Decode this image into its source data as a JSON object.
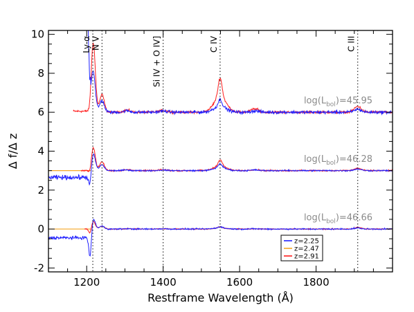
{
  "chart_data": {
    "type": "line",
    "title": "",
    "xlabel": "Restframe Wavelength (Å)",
    "ylabel": "Δ f/Δ z",
    "xlim": [
      1100,
      2000
    ],
    "ylim": [
      -2.2,
      10.2
    ],
    "xticks": [
      1200,
      1400,
      1600,
      1800
    ],
    "yticks": [
      -2,
      0,
      2,
      4,
      6,
      8,
      10
    ],
    "grid": false,
    "legend_position": "lower-right",
    "colors": {
      "z225": "#1f1fff",
      "z247": "#f5a623",
      "z291": "#ff1a1a"
    },
    "line_markers": [
      {
        "label": "Ly-α",
        "x": 1216
      },
      {
        "label": "N V",
        "x": 1240
      },
      {
        "label": "Si IV + O IV]",
        "x": 1400
      },
      {
        "label": "C IV",
        "x": 1549
      },
      {
        "label": "C III",
        "x": 1909
      }
    ],
    "luminosity_labels": [
      {
        "text": "log(L_bol)=45.95",
        "base": "log(L",
        "sub": "bol",
        "tail": ")=45.95",
        "offset": 6
      },
      {
        "text": "log(L_bol)=46.28",
        "base": "log(L",
        "sub": "bol",
        "tail": ")=46.28",
        "offset": 3
      },
      {
        "text": "log(L_bol)=46.66",
        "base": "log(L",
        "sub": "bol",
        "tail": ")=46.66",
        "offset": 0
      }
    ],
    "series": [
      {
        "name": "z=2.25",
        "color": "#1f1fff"
      },
      {
        "name": "z=2.47",
        "color": "#f5a623"
      },
      {
        "name": "z=2.91",
        "color": "#ff1a1a"
      }
    ],
    "panels": [
      {
        "offset": 6,
        "blue": {
          "left_level": 5.8,
          "left_noise": 0.45,
          "ly_peak": 2.0,
          "ly_dip": -0.9,
          "nv": 0.6,
          "civ": 0.65,
          "ciii": 0.15,
          "cont_noise": 0.07
        },
        "red": {
          "start": 1165,
          "left_level": 0.05,
          "ly_peak": 3.6,
          "ly_dip": -0.4,
          "nv": 0.9,
          "civ": 1.75,
          "ciii": 0.3,
          "cont_noise": 0.05
        }
      },
      {
        "offset": 3,
        "blue": {
          "left_level": -0.35,
          "left_noise": 0.1,
          "ly_peak": 0.9,
          "ly_dip": -0.8,
          "nv": 0.3,
          "civ": 0.35,
          "ciii": 0.08,
          "cont_noise": 0.03
        },
        "red": {
          "start": 1185,
          "left_level": 0.0,
          "ly_peak": 1.2,
          "ly_dip": -0.3,
          "nv": 0.45,
          "civ": 0.55,
          "ciii": 0.12,
          "cont_noise": 0.03
        },
        "orange": {
          "level": 0.0,
          "end": 1212
        }
      },
      {
        "offset": 0,
        "blue": {
          "left_level": -0.45,
          "left_noise": 0.07,
          "ly_peak": 0.55,
          "ly_dip": -1.4,
          "nv": 0.15,
          "civ": 0.12,
          "ciii": 0.05,
          "cont_noise": 0.03
        },
        "red": {
          "start": 1195,
          "left_level": 0.0,
          "ly_peak": 0.4,
          "ly_dip": -0.3,
          "nv": 0.15,
          "civ": 0.12,
          "ciii": 0.08,
          "cont_noise": 0.02
        },
        "orange": {
          "level": 0.0,
          "end": 1212
        }
      }
    ]
  }
}
